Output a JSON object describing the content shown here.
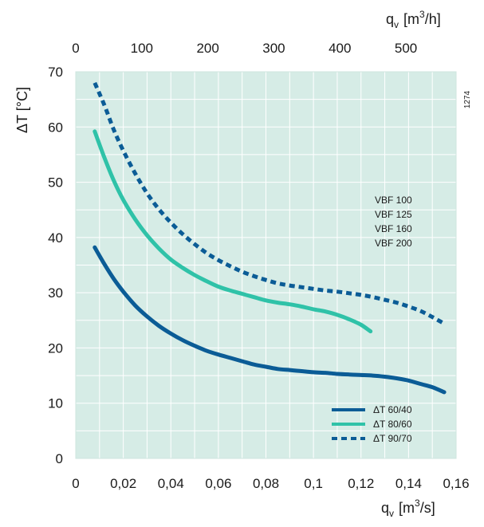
{
  "chart_data": {
    "type": "line",
    "x": {
      "label_main": "q",
      "label_sub": "v",
      "label_unit_pre": "[m",
      "label_unit_sup": "3",
      "label_unit_post": "/s]",
      "range": [
        0,
        0.16
      ],
      "ticks": [
        0,
        0.02,
        0.04,
        0.06,
        0.08,
        0.1,
        0.12,
        0.14,
        0.16
      ],
      "tick_labels": [
        "0",
        "0,02",
        "0,04",
        "0,06",
        "0,08",
        "0,1",
        "0,12",
        "0,14",
        "0,16"
      ]
    },
    "x_top": {
      "label_main": "q",
      "label_sub": "v",
      "label_unit_pre": "[m",
      "label_unit_sup": "3",
      "label_unit_post": "/h]",
      "range": [
        0,
        576
      ],
      "ticks": [
        0,
        100,
        200,
        300,
        400,
        500
      ],
      "tick_labels": [
        "0",
        "100",
        "200",
        "300",
        "400",
        "500"
      ]
    },
    "y": {
      "label": "ΔT [°C]",
      "range": [
        0,
        70
      ],
      "ticks": [
        0,
        10,
        20,
        30,
        40,
        50,
        60,
        70
      ],
      "tick_labels": [
        "0",
        "10",
        "20",
        "30",
        "40",
        "50",
        "60",
        "70"
      ]
    },
    "grid": true,
    "plot_background": "#d6ece6",
    "grid_color": "#ffffff",
    "series": [
      {
        "name": "ΔT 60/40",
        "color": "#0b5c96",
        "dash": "solid",
        "points": [
          [
            0.008,
            38.2
          ],
          [
            0.012,
            35.2
          ],
          [
            0.016,
            32.5
          ],
          [
            0.02,
            30.2
          ],
          [
            0.025,
            27.7
          ],
          [
            0.03,
            25.7
          ],
          [
            0.035,
            24.0
          ],
          [
            0.04,
            22.6
          ],
          [
            0.045,
            21.4
          ],
          [
            0.05,
            20.4
          ],
          [
            0.055,
            19.5
          ],
          [
            0.06,
            18.8
          ],
          [
            0.065,
            18.2
          ],
          [
            0.07,
            17.6
          ],
          [
            0.075,
            17.0
          ],
          [
            0.08,
            16.6
          ],
          [
            0.085,
            16.2
          ],
          [
            0.09,
            16.0
          ],
          [
            0.095,
            15.8
          ],
          [
            0.1,
            15.6
          ],
          [
            0.105,
            15.5
          ],
          [
            0.11,
            15.3
          ],
          [
            0.115,
            15.2
          ],
          [
            0.12,
            15.1
          ],
          [
            0.125,
            15.0
          ],
          [
            0.13,
            14.8
          ],
          [
            0.135,
            14.5
          ],
          [
            0.14,
            14.1
          ],
          [
            0.145,
            13.5
          ],
          [
            0.15,
            12.9
          ],
          [
            0.155,
            12.0
          ]
        ]
      },
      {
        "name": "ΔT 80/60",
        "color": "#2fc2a8",
        "dash": "solid",
        "points": [
          [
            0.008,
            59.2
          ],
          [
            0.012,
            54.5
          ],
          [
            0.016,
            50.3
          ],
          [
            0.02,
            46.8
          ],
          [
            0.025,
            43.3
          ],
          [
            0.03,
            40.4
          ],
          [
            0.035,
            38.0
          ],
          [
            0.04,
            36.0
          ],
          [
            0.045,
            34.5
          ],
          [
            0.05,
            33.2
          ],
          [
            0.055,
            32.1
          ],
          [
            0.06,
            31.1
          ],
          [
            0.065,
            30.4
          ],
          [
            0.07,
            29.8
          ],
          [
            0.075,
            29.2
          ],
          [
            0.08,
            28.6
          ],
          [
            0.085,
            28.2
          ],
          [
            0.09,
            27.9
          ],
          [
            0.095,
            27.5
          ],
          [
            0.1,
            27.0
          ],
          [
            0.105,
            26.6
          ],
          [
            0.11,
            26.0
          ],
          [
            0.115,
            25.2
          ],
          [
            0.12,
            24.2
          ],
          [
            0.124,
            23.0
          ]
        ]
      },
      {
        "name": "ΔT 90/70",
        "color": "#0b5c96",
        "dash": "dotted",
        "points": [
          [
            0.008,
            68.0
          ],
          [
            0.012,
            64.0
          ],
          [
            0.016,
            59.5
          ],
          [
            0.02,
            55.7
          ],
          [
            0.025,
            51.6
          ],
          [
            0.03,
            48.0
          ],
          [
            0.035,
            45.1
          ],
          [
            0.04,
            42.7
          ],
          [
            0.045,
            40.6
          ],
          [
            0.05,
            38.8
          ],
          [
            0.055,
            37.2
          ],
          [
            0.06,
            35.9
          ],
          [
            0.065,
            34.8
          ],
          [
            0.07,
            33.8
          ],
          [
            0.075,
            33.0
          ],
          [
            0.08,
            32.3
          ],
          [
            0.085,
            31.7
          ],
          [
            0.09,
            31.3
          ],
          [
            0.095,
            31.0
          ],
          [
            0.1,
            30.7
          ],
          [
            0.105,
            30.4
          ],
          [
            0.11,
            30.2
          ],
          [
            0.115,
            29.9
          ],
          [
            0.12,
            29.6
          ],
          [
            0.125,
            29.2
          ],
          [
            0.13,
            28.7
          ],
          [
            0.135,
            28.2
          ],
          [
            0.14,
            27.5
          ],
          [
            0.145,
            26.7
          ],
          [
            0.15,
            25.6
          ],
          [
            0.155,
            24.4
          ]
        ]
      }
    ],
    "annotations": {
      "models": [
        "VBF 100",
        "VBF 125",
        "VBF 160",
        "VBF 200"
      ],
      "code": "1274"
    },
    "legend_position": "bottom-right"
  }
}
